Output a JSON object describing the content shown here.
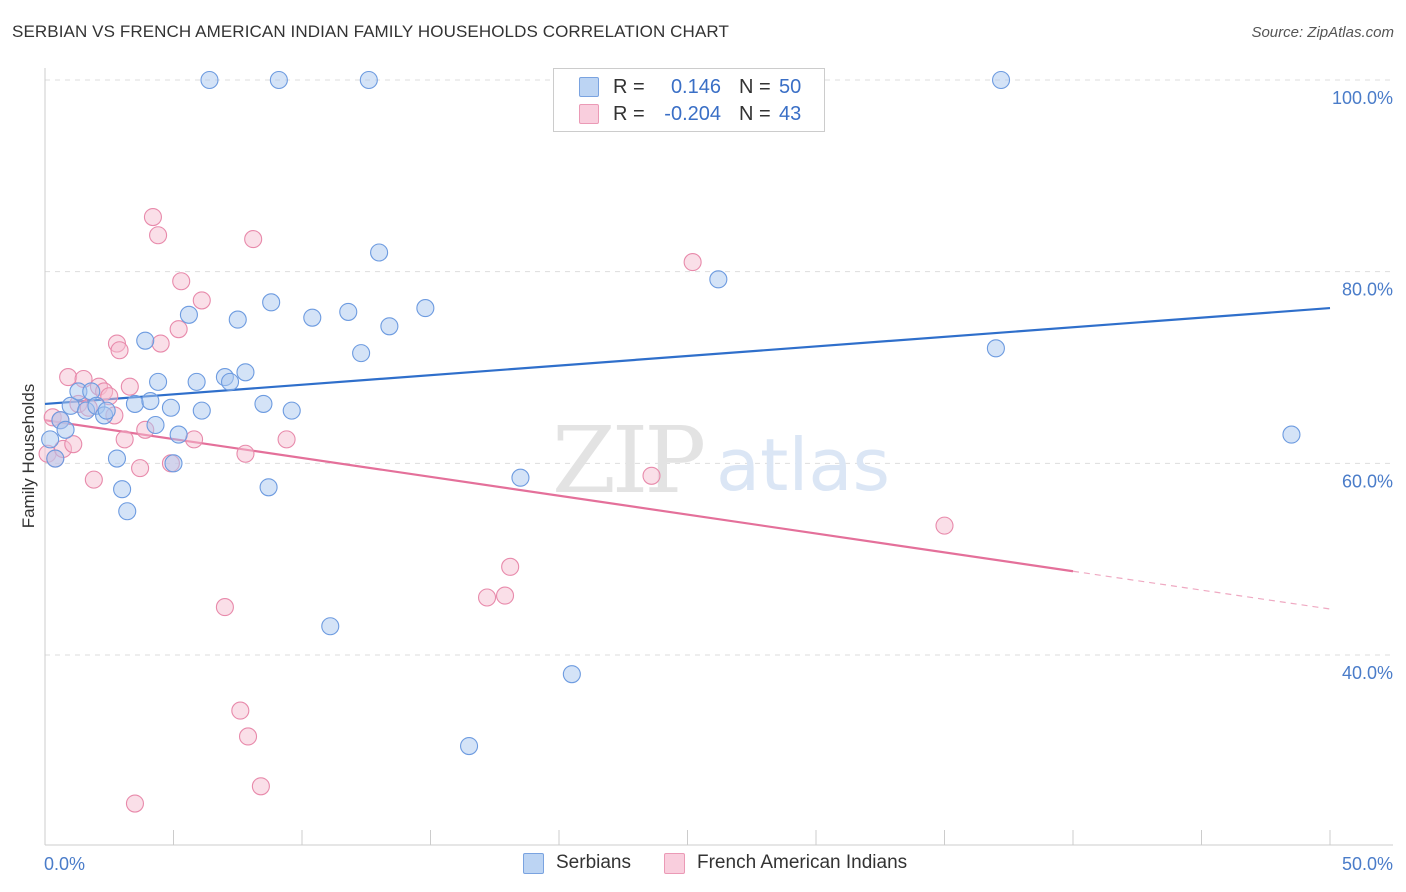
{
  "title": "SERBIAN VS FRENCH AMERICAN INDIAN FAMILY HOUSEHOLDS CORRELATION CHART",
  "source": "Source: ZipAtlas.com",
  "watermark": {
    "zip": "ZIP",
    "atlas": "atlas"
  },
  "legend": {
    "series1": {
      "r_label": "R =",
      "r_value": "0.146",
      "n_label": "N =",
      "n_value": "50"
    },
    "series2": {
      "r_label": "R =",
      "r_value": "-0.204",
      "n_label": "N =",
      "n_value": "43"
    }
  },
  "bottom_legend": {
    "series1": "Serbians",
    "series2": "French American Indians"
  },
  "colors": {
    "blue_fill": "#a9c8f0",
    "blue_stroke": "#6d9be0",
    "blue_line": "#2f6fcb",
    "pink_fill": "#f6bfd1",
    "pink_stroke": "#e88aab",
    "pink_line": "#e4709a",
    "tick_text": "#4a7cc9",
    "grid": "#dddddd"
  },
  "chart_data": {
    "type": "scatter",
    "title": "SERBIAN VS FRENCH AMERICAN INDIAN FAMILY HOUSEHOLDS CORRELATION CHART",
    "xlabel": "",
    "ylabel": "Family Households",
    "xlim": [
      0,
      50
    ],
    "ylim": [
      20,
      102
    ],
    "x_tick_labels": {
      "left": "0.0%",
      "right": "50.0%"
    },
    "y_ticks": [
      {
        "value": 100,
        "label": "100.0%"
      },
      {
        "value": 80,
        "label": "80.0%"
      },
      {
        "value": 60,
        "label": "60.0%"
      },
      {
        "value": 40,
        "label": "40.0%"
      }
    ],
    "series": [
      {
        "name": "Serbians",
        "color": "blue",
        "r": 0.146,
        "n": 50,
        "trend": {
          "x0": 0,
          "y0": 66.2,
          "x1": 50,
          "y1": 76.2,
          "solid_until": 50
        },
        "points": [
          [
            0.2,
            62.5
          ],
          [
            0.4,
            60.5
          ],
          [
            0.6,
            64.5
          ],
          [
            0.8,
            63.5
          ],
          [
            1.0,
            66
          ],
          [
            1.3,
            67.5
          ],
          [
            1.6,
            65.5
          ],
          [
            1.8,
            67.5
          ],
          [
            2.0,
            66
          ],
          [
            2.3,
            65
          ],
          [
            2.4,
            65.5
          ],
          [
            2.8,
            60.5
          ],
          [
            3.0,
            57.3
          ],
          [
            3.2,
            55
          ],
          [
            3.5,
            66.2
          ],
          [
            3.9,
            72.8
          ],
          [
            4.1,
            66.5
          ],
          [
            4.3,
            64
          ],
          [
            4.4,
            68.5
          ],
          [
            4.9,
            65.8
          ],
          [
            5.0,
            60
          ],
          [
            5.2,
            63
          ],
          [
            5.6,
            75.5
          ],
          [
            5.9,
            68.5
          ],
          [
            6.1,
            65.5
          ],
          [
            6.4,
            100
          ],
          [
            7.0,
            69
          ],
          [
            7.2,
            68.5
          ],
          [
            7.5,
            75
          ],
          [
            7.8,
            69.5
          ],
          [
            8.5,
            66.2
          ],
          [
            8.7,
            57.5
          ],
          [
            8.8,
            76.8
          ],
          [
            9.6,
            65.5
          ],
          [
            9.1,
            100
          ],
          [
            10.4,
            75.2
          ],
          [
            11.1,
            43
          ],
          [
            11.8,
            75.8
          ],
          [
            12.3,
            71.5
          ],
          [
            12.6,
            100
          ],
          [
            13.0,
            82
          ],
          [
            13.4,
            74.3
          ],
          [
            14.8,
            76.2
          ],
          [
            16.5,
            30.5
          ],
          [
            18.5,
            58.5
          ],
          [
            20.5,
            38
          ],
          [
            26.2,
            79.2
          ],
          [
            37.0,
            72
          ],
          [
            37.2,
            100
          ],
          [
            48.5,
            63
          ]
        ]
      },
      {
        "name": "French American Indians",
        "color": "pink",
        "r": -0.204,
        "n": 43,
        "trend": {
          "x0": 0,
          "y0": 64.5,
          "x1": 50,
          "y1": 44.8,
          "solid_until": 40
        },
        "points": [
          [
            0.1,
            61
          ],
          [
            0.3,
            64.8
          ],
          [
            0.4,
            60.5
          ],
          [
            0.7,
            61.5
          ],
          [
            0.9,
            69
          ],
          [
            1.1,
            62
          ],
          [
            1.3,
            66.2
          ],
          [
            1.5,
            68.8
          ],
          [
            1.7,
            65.8
          ],
          [
            1.9,
            58.3
          ],
          [
            2.1,
            68
          ],
          [
            2.3,
            67.5
          ],
          [
            2.5,
            67
          ],
          [
            2.7,
            65
          ],
          [
            2.8,
            72.5
          ],
          [
            2.9,
            71.8
          ],
          [
            3.1,
            62.5
          ],
          [
            3.3,
            68
          ],
          [
            3.7,
            59.5
          ],
          [
            3.9,
            63.5
          ],
          [
            4.2,
            85.7
          ],
          [
            4.4,
            83.8
          ],
          [
            4.5,
            72.5
          ],
          [
            4.9,
            60
          ],
          [
            5.2,
            74
          ],
          [
            5.3,
            79
          ],
          [
            5.8,
            62.5
          ],
          [
            6.1,
            77
          ],
          [
            7.0,
            45
          ],
          [
            7.6,
            34.2
          ],
          [
            7.8,
            61
          ],
          [
            7.9,
            31.5
          ],
          [
            8.1,
            83.4
          ],
          [
            8.4,
            26.3
          ],
          [
            9.4,
            62.5
          ],
          [
            3.5,
            24.5
          ],
          [
            17.2,
            46
          ],
          [
            17.9,
            46.2
          ],
          [
            18.1,
            49.2
          ],
          [
            23.6,
            58.7
          ],
          [
            25.2,
            81
          ],
          [
            35.0,
            53.5
          ],
          [
            0.6,
            64.5
          ]
        ]
      }
    ]
  }
}
